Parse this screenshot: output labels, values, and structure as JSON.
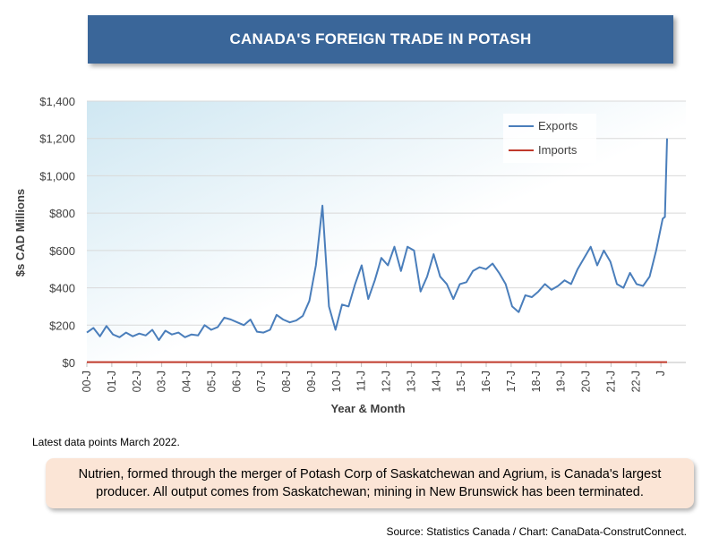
{
  "title": "CANADA'S FOREIGN TRADE IN POTASH",
  "latest_note": "Latest data points March 2022.",
  "note": "Nutrien, formed through the merger of Potash Corp of Saskatchewan and Agrium, is Canada's largest producer. All output comes from Saskatchewan; mining in New Brunswick has been terminated.",
  "source": "Source: Statistics Canada / Chart: CanaData-ConstrutConnect.",
  "chart_data": {
    "type": "line",
    "title": "CANADA'S FOREIGN TRADE IN POTASH",
    "xlabel": "Year & Month",
    "ylabel": "$s CAD Millions",
    "ylim": [
      0,
      1400
    ],
    "yticks": [
      "$0",
      "$200",
      "$400",
      "$600",
      "$800",
      "$1,000",
      "$1,200",
      "$1,400"
    ],
    "ytick_values": [
      0,
      200,
      400,
      600,
      800,
      1000,
      1200,
      1400
    ],
    "xticks": [
      "00-J",
      "01-J",
      "02-J",
      "03-J",
      "04-J",
      "05-J",
      "06-J",
      "07-J",
      "08-J",
      "09-J",
      "10-J",
      "11-J",
      "12-J",
      "13-J",
      "14-J",
      "15-J",
      "16-J",
      "17-J",
      "18-J",
      "19-J",
      "20-J",
      "21-J",
      "22-J",
      "J"
    ],
    "x_start": "2000-01",
    "x_end": "2022-03",
    "grid": true,
    "legend_position": "top-right",
    "colors": {
      "exports": "#4a7ebb",
      "imports": "#c0392b"
    },
    "series": [
      {
        "name": "Exports",
        "x": [
          "2000-01",
          "2000-04",
          "2000-07",
          "2000-10",
          "2001-01",
          "2001-04",
          "2001-07",
          "2001-10",
          "2002-01",
          "2002-04",
          "2002-07",
          "2002-10",
          "2003-01",
          "2003-04",
          "2003-07",
          "2003-10",
          "2004-01",
          "2004-04",
          "2004-07",
          "2004-10",
          "2005-01",
          "2005-04",
          "2005-07",
          "2005-10",
          "2006-01",
          "2006-04",
          "2006-07",
          "2006-10",
          "2007-01",
          "2007-04",
          "2007-07",
          "2007-10",
          "2008-01",
          "2008-04",
          "2008-07",
          "2008-10",
          "2009-01",
          "2009-04",
          "2009-07",
          "2009-10",
          "2010-01",
          "2010-04",
          "2010-07",
          "2010-10",
          "2011-01",
          "2011-04",
          "2011-07",
          "2011-10",
          "2012-01",
          "2012-04",
          "2012-07",
          "2012-10",
          "2013-01",
          "2013-04",
          "2013-07",
          "2013-10",
          "2014-01",
          "2014-04",
          "2014-07",
          "2014-10",
          "2015-01",
          "2015-04",
          "2015-07",
          "2015-10",
          "2016-01",
          "2016-04",
          "2016-07",
          "2016-10",
          "2017-01",
          "2017-04",
          "2017-07",
          "2017-10",
          "2018-01",
          "2018-04",
          "2018-07",
          "2018-10",
          "2019-01",
          "2019-04",
          "2019-07",
          "2019-10",
          "2020-01",
          "2020-04",
          "2020-07",
          "2020-10",
          "2021-01",
          "2021-04",
          "2021-07",
          "2021-10",
          "2022-01",
          "2022-02",
          "2022-03"
        ],
        "values": [
          160,
          185,
          140,
          195,
          150,
          135,
          160,
          140,
          155,
          145,
          175,
          120,
          170,
          150,
          160,
          135,
          150,
          145,
          200,
          175,
          190,
          240,
          230,
          215,
          200,
          230,
          165,
          160,
          175,
          255,
          230,
          215,
          225,
          250,
          330,
          520,
          840,
          300,
          175,
          310,
          300,
          420,
          520,
          340,
          440,
          560,
          520,
          620,
          490,
          620,
          600,
          380,
          460,
          580,
          460,
          420,
          340,
          420,
          430,
          490,
          510,
          500,
          530,
          480,
          420,
          300,
          270,
          360,
          350,
          380,
          420,
          390,
          410,
          440,
          420,
          500,
          560,
          620,
          520,
          600,
          540,
          420,
          400,
          480,
          420,
          410,
          460,
          600,
          770,
          780,
          1200
        ]
      },
      {
        "name": "Imports",
        "x": [
          "2000-01",
          "2022-03"
        ],
        "values": [
          2,
          2
        ]
      }
    ]
  }
}
